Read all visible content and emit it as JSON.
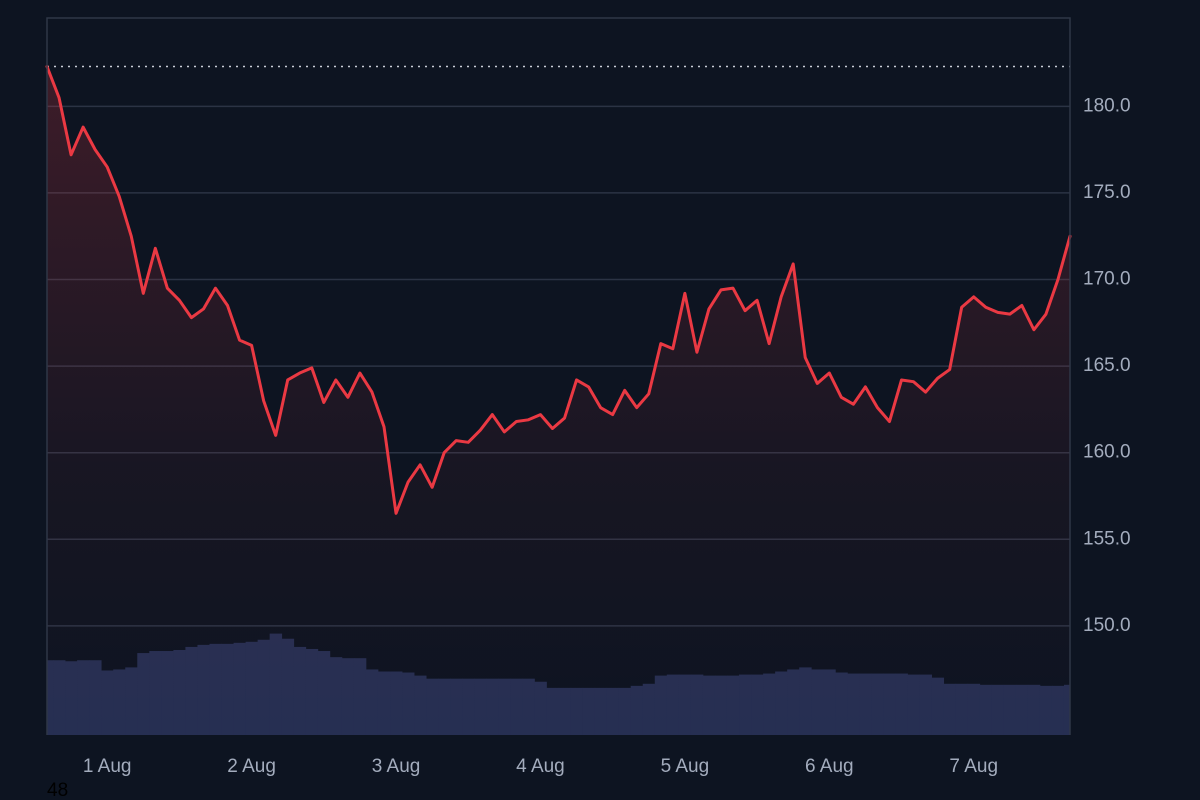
{
  "chart_data": {
    "type": "line",
    "categories": [
      null,
      null,
      null,
      null,
      null,
      "1 Aug",
      null,
      null,
      null,
      null,
      null,
      null,
      null,
      null,
      null,
      null,
      null,
      "2 Aug",
      null,
      null,
      null,
      null,
      null,
      null,
      null,
      null,
      null,
      null,
      null,
      "3 Aug",
      null,
      null,
      null,
      null,
      null,
      null,
      null,
      null,
      null,
      null,
      null,
      "4 Aug",
      null,
      null,
      null,
      null,
      null,
      null,
      null,
      null,
      null,
      null,
      null,
      "5 Aug",
      null,
      null,
      null,
      null,
      null,
      null,
      null,
      null,
      null,
      null,
      null,
      "6 Aug",
      null,
      null,
      null,
      null,
      null,
      null,
      null,
      null,
      null,
      null,
      null,
      "7 Aug",
      null,
      null,
      null,
      null,
      null,
      null,
      null,
      null
    ],
    "series": [
      {
        "type": "line",
        "color": "#ea3943",
        "values": [
          182.3,
          180.5,
          177.2,
          178.8,
          177.5,
          176.5,
          174.8,
          172.5,
          169.2,
          171.8,
          169.5,
          168.8,
          167.8,
          168.3,
          169.5,
          168.5,
          166.5,
          166.2,
          163.0,
          161.0,
          164.2,
          164.6,
          164.9,
          162.9,
          164.2,
          163.2,
          164.6,
          163.5,
          161.5,
          156.5,
          158.3,
          159.3,
          158.0,
          160.0,
          160.7,
          160.6,
          161.3,
          162.2,
          161.2,
          161.8,
          161.9,
          162.2,
          161.4,
          162.0,
          164.2,
          163.8,
          162.6,
          162.2,
          163.6,
          162.6,
          163.4,
          166.3,
          166.0,
          169.2,
          165.8,
          168.3,
          169.4,
          169.5,
          168.2,
          168.8,
          166.3,
          169.0,
          170.9,
          165.5,
          164.0,
          164.6,
          163.2,
          162.8,
          163.8,
          162.6,
          161.8,
          164.2,
          164.1,
          163.5,
          164.3,
          164.8,
          168.4,
          169.0,
          168.4,
          168.1,
          168.0,
          168.5,
          167.1,
          168.0,
          170.0,
          172.5
        ]
      },
      {
        "type": "bar",
        "axis": "y2",
        "color": "#262f52",
        "values": [
          73,
          73,
          72,
          73,
          73,
          63,
          64,
          66,
          80,
          82,
          82,
          83,
          86,
          88,
          89,
          89,
          90,
          91,
          93,
          99,
          94,
          86,
          84,
          82,
          76,
          75,
          75,
          64,
          62,
          62,
          61,
          58,
          55,
          55,
          55,
          55,
          55,
          55,
          55,
          55,
          55,
          52,
          46,
          46,
          46,
          46,
          46,
          46,
          46,
          48,
          50,
          58,
          59,
          59,
          59,
          58,
          58,
          58,
          59,
          59,
          60,
          62,
          64,
          66,
          64,
          64,
          61,
          60,
          60,
          60,
          60,
          60,
          59,
          59,
          56,
          50,
          50,
          50,
          49,
          49,
          49,
          49,
          49,
          48,
          48,
          49
        ]
      }
    ],
    "ylim": [
      143.7,
      185.1
    ],
    "yticks": [
      {
        "value": 150,
        "label": "150.0"
      },
      {
        "value": 155,
        "label": "155.0"
      },
      {
        "value": 160,
        "label": "160.0"
      },
      {
        "value": 165,
        "label": "165.0"
      },
      {
        "value": 170,
        "label": "170.0"
      },
      {
        "value": 175,
        "label": "175.0"
      },
      {
        "value": 180,
        "label": "180.0"
      }
    ],
    "y2lim": [
      0,
      700
    ],
    "reference_line": 182.3,
    "grid": true,
    "footnote": "48"
  }
}
